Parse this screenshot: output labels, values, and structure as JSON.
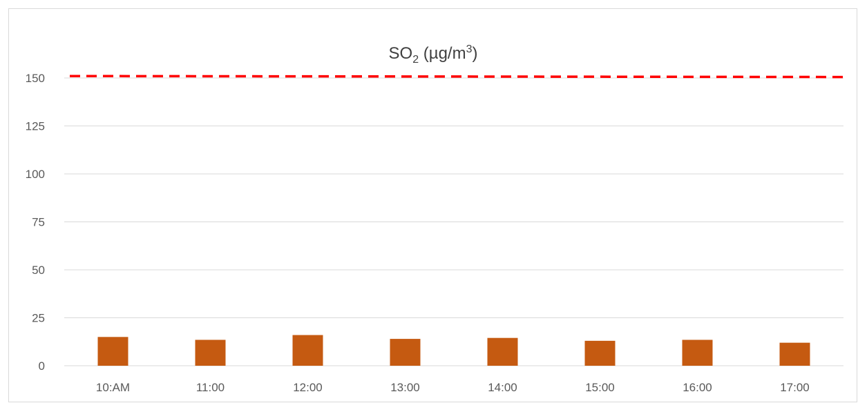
{
  "chart_data": {
    "type": "bar",
    "title": {
      "main": "SO",
      "sub": "2",
      "mid": " (µg/m",
      "sup": "3",
      "end": ")"
    },
    "categories": [
      "10:AM",
      "11:00",
      "12:00",
      "13:00",
      "14:00",
      "15:00",
      "16:00",
      "17:00"
    ],
    "series": [
      {
        "values": [
          15,
          13.5,
          16,
          14,
          14.5,
          13,
          13.5,
          12
        ],
        "color": "#C55A11"
      }
    ],
    "reference_line": {
      "start_value": 151,
      "end_value": 150.5,
      "color": "#FF0000",
      "style": "dashed"
    },
    "ylim": [
      0,
      150
    ],
    "yticks": [
      "0",
      "25",
      "50",
      "75",
      "100",
      "125",
      "150"
    ],
    "grid": true,
    "legend": "none",
    "colors": {
      "gridline": "#D9D9D9",
      "tick_text": "#595959",
      "title_text": "#404040"
    }
  }
}
